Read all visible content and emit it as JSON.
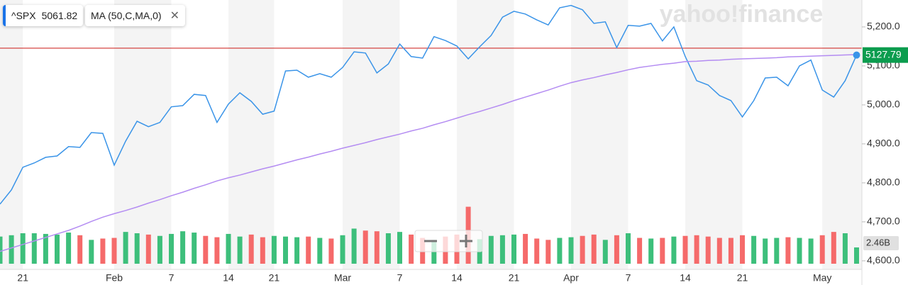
{
  "chart_data": {
    "type": "line",
    "watermark": "yahoo!finance",
    "categories": [
      null,
      null,
      "21",
      null,
      null,
      null,
      null,
      null,
      null,
      null,
      "Feb",
      null,
      null,
      null,
      null,
      "7",
      null,
      null,
      null,
      null,
      "14",
      null,
      null,
      null,
      "21",
      null,
      null,
      null,
      null,
      null,
      "Mar",
      null,
      null,
      null,
      null,
      "7",
      null,
      null,
      null,
      null,
      "14",
      null,
      null,
      null,
      null,
      "21",
      null,
      null,
      null,
      null,
      "Apr",
      null,
      null,
      null,
      null,
      "7",
      null,
      null,
      null,
      null,
      "14",
      null,
      null,
      null,
      null,
      "21",
      null,
      null,
      null,
      null,
      null,
      null,
      "May",
      null,
      null,
      null
    ],
    "series": [
      {
        "name": "^SPX",
        "hover_value": 5061.82,
        "color": "#3a94e8",
        "values": [
          4745.5,
          4782,
          4840,
          4851,
          4865.5,
          4869,
          4893,
          4891,
          4929,
          4927,
          4845.5,
          4907,
          4958,
          4944,
          4955,
          4995,
          4998,
          5027,
          5024,
          4955,
          5002,
          5031,
          5009,
          4976,
          4984,
          5087,
          5089,
          5071,
          5080,
          5071,
          5096,
          5136,
          5133,
          5082,
          5105,
          5156,
          5124,
          5120,
          5175,
          5165,
          5151,
          5118,
          5149,
          5178,
          5225,
          5240,
          5233,
          5218,
          5205,
          5249,
          5255,
          5244,
          5209,
          5213,
          5147,
          5204,
          5202,
          5209,
          5164,
          5200,
          5124,
          5062,
          5051,
          5024,
          5011,
          4969,
          5011,
          5069,
          5071,
          5049,
          5100,
          5115,
          5038,
          5020,
          5062,
          5127.79
        ],
        "label_color": "#0b9c4e"
      },
      {
        "name": "MA (50,C,MA,0)",
        "color": "#b48cf2",
        "values": [
          4624,
          4633,
          4642,
          4651,
          4660,
          4669,
          4678,
          4689,
          4701,
          4712,
          4721,
          4729,
          4738,
          4748,
          4757,
          4767,
          4776,
          4786,
          4795,
          4805,
          4813,
          4820,
          4828,
          4836,
          4843,
          4851,
          4859,
          4866,
          4874,
          4881,
          4889,
          4896,
          4903,
          4911,
          4918,
          4925,
          4933,
          4940,
          4949,
          4957,
          4966,
          4975,
          4983,
          4992,
          5001,
          5011,
          5020,
          5029,
          5038,
          5048,
          5057,
          5064,
          5070,
          5077,
          5083,
          5090,
          5096,
          5100,
          5104,
          5107,
          5111,
          5112,
          5114,
          5115,
          5117,
          5118,
          5119,
          5120,
          5121,
          5123,
          5124,
          5125,
          5126,
          5127,
          5128,
          5129
        ]
      },
      {
        "type": "bar",
        "axis": "y2",
        "up_color": "#3dbf7b",
        "down_color": "#f56a6a",
        "values": [
          4.1,
          4.3,
          4.6,
          4.6,
          4.5,
          4.4,
          4.7,
          4.3,
          3.6,
          3.8,
          3.9,
          4.8,
          4.6,
          4.4,
          4.2,
          4.5,
          4.9,
          4.7,
          4.2,
          4.0,
          4.5,
          4.1,
          4.4,
          4.0,
          4.2,
          4.1,
          4.0,
          4.1,
          3.9,
          3.8,
          4.3,
          5.3,
          5.0,
          4.9,
          4.6,
          4.8,
          4.4,
          3.9,
          3.6,
          4.1,
          4.4,
          8.6,
          3.7,
          4.2,
          4.3,
          4.4,
          4.5,
          3.8,
          3.6,
          3.9,
          4.0,
          4.2,
          4.4,
          3.6,
          4.3,
          4.6,
          3.9,
          3.8,
          3.9,
          4.1,
          4.2,
          4.3,
          4.1,
          3.9,
          3.9,
          4.3,
          4.2,
          3.8,
          3.9,
          4.0,
          3.9,
          3.8,
          4.3,
          4.8,
          4.6,
          2.46
        ],
        "value_labels": [
          null,
          null,
          null,
          null,
          null,
          null,
          null,
          null,
          null,
          null,
          null,
          null,
          null,
          null,
          null,
          null,
          null,
          null,
          null,
          null,
          null,
          null,
          null,
          null,
          null,
          null,
          null,
          null,
          null,
          null,
          null,
          null,
          null,
          null,
          null,
          null,
          null,
          null,
          null,
          null,
          null,
          null,
          null,
          null,
          null,
          null,
          null,
          null,
          null,
          null,
          null,
          null,
          null,
          null,
          null,
          null,
          null,
          null,
          null,
          null,
          null,
          null,
          null,
          null,
          null,
          null,
          null,
          null,
          null,
          null,
          null,
          null,
          null,
          null,
          null,
          "2.46B"
        ]
      }
    ],
    "reference_line": {
      "value": 5145.5,
      "color": "#d0312d"
    },
    "ylim": [
      4578,
      5269
    ],
    "yticks": [
      {
        "value": 4600,
        "label": "4,600.0"
      },
      {
        "value": 4700,
        "label": "4,700.0"
      },
      {
        "value": 4800,
        "label": "4,800.0"
      },
      {
        "value": 4900,
        "label": "4,900.0"
      },
      {
        "value": 5000,
        "label": "5,000.0"
      },
      {
        "value": 5100,
        "label": "5,100.0"
      },
      {
        "value": 5200,
        "label": "5,200.0"
      }
    ],
    "y2lim": [
      0,
      39.8
    ],
    "stripes": true
  }
}
